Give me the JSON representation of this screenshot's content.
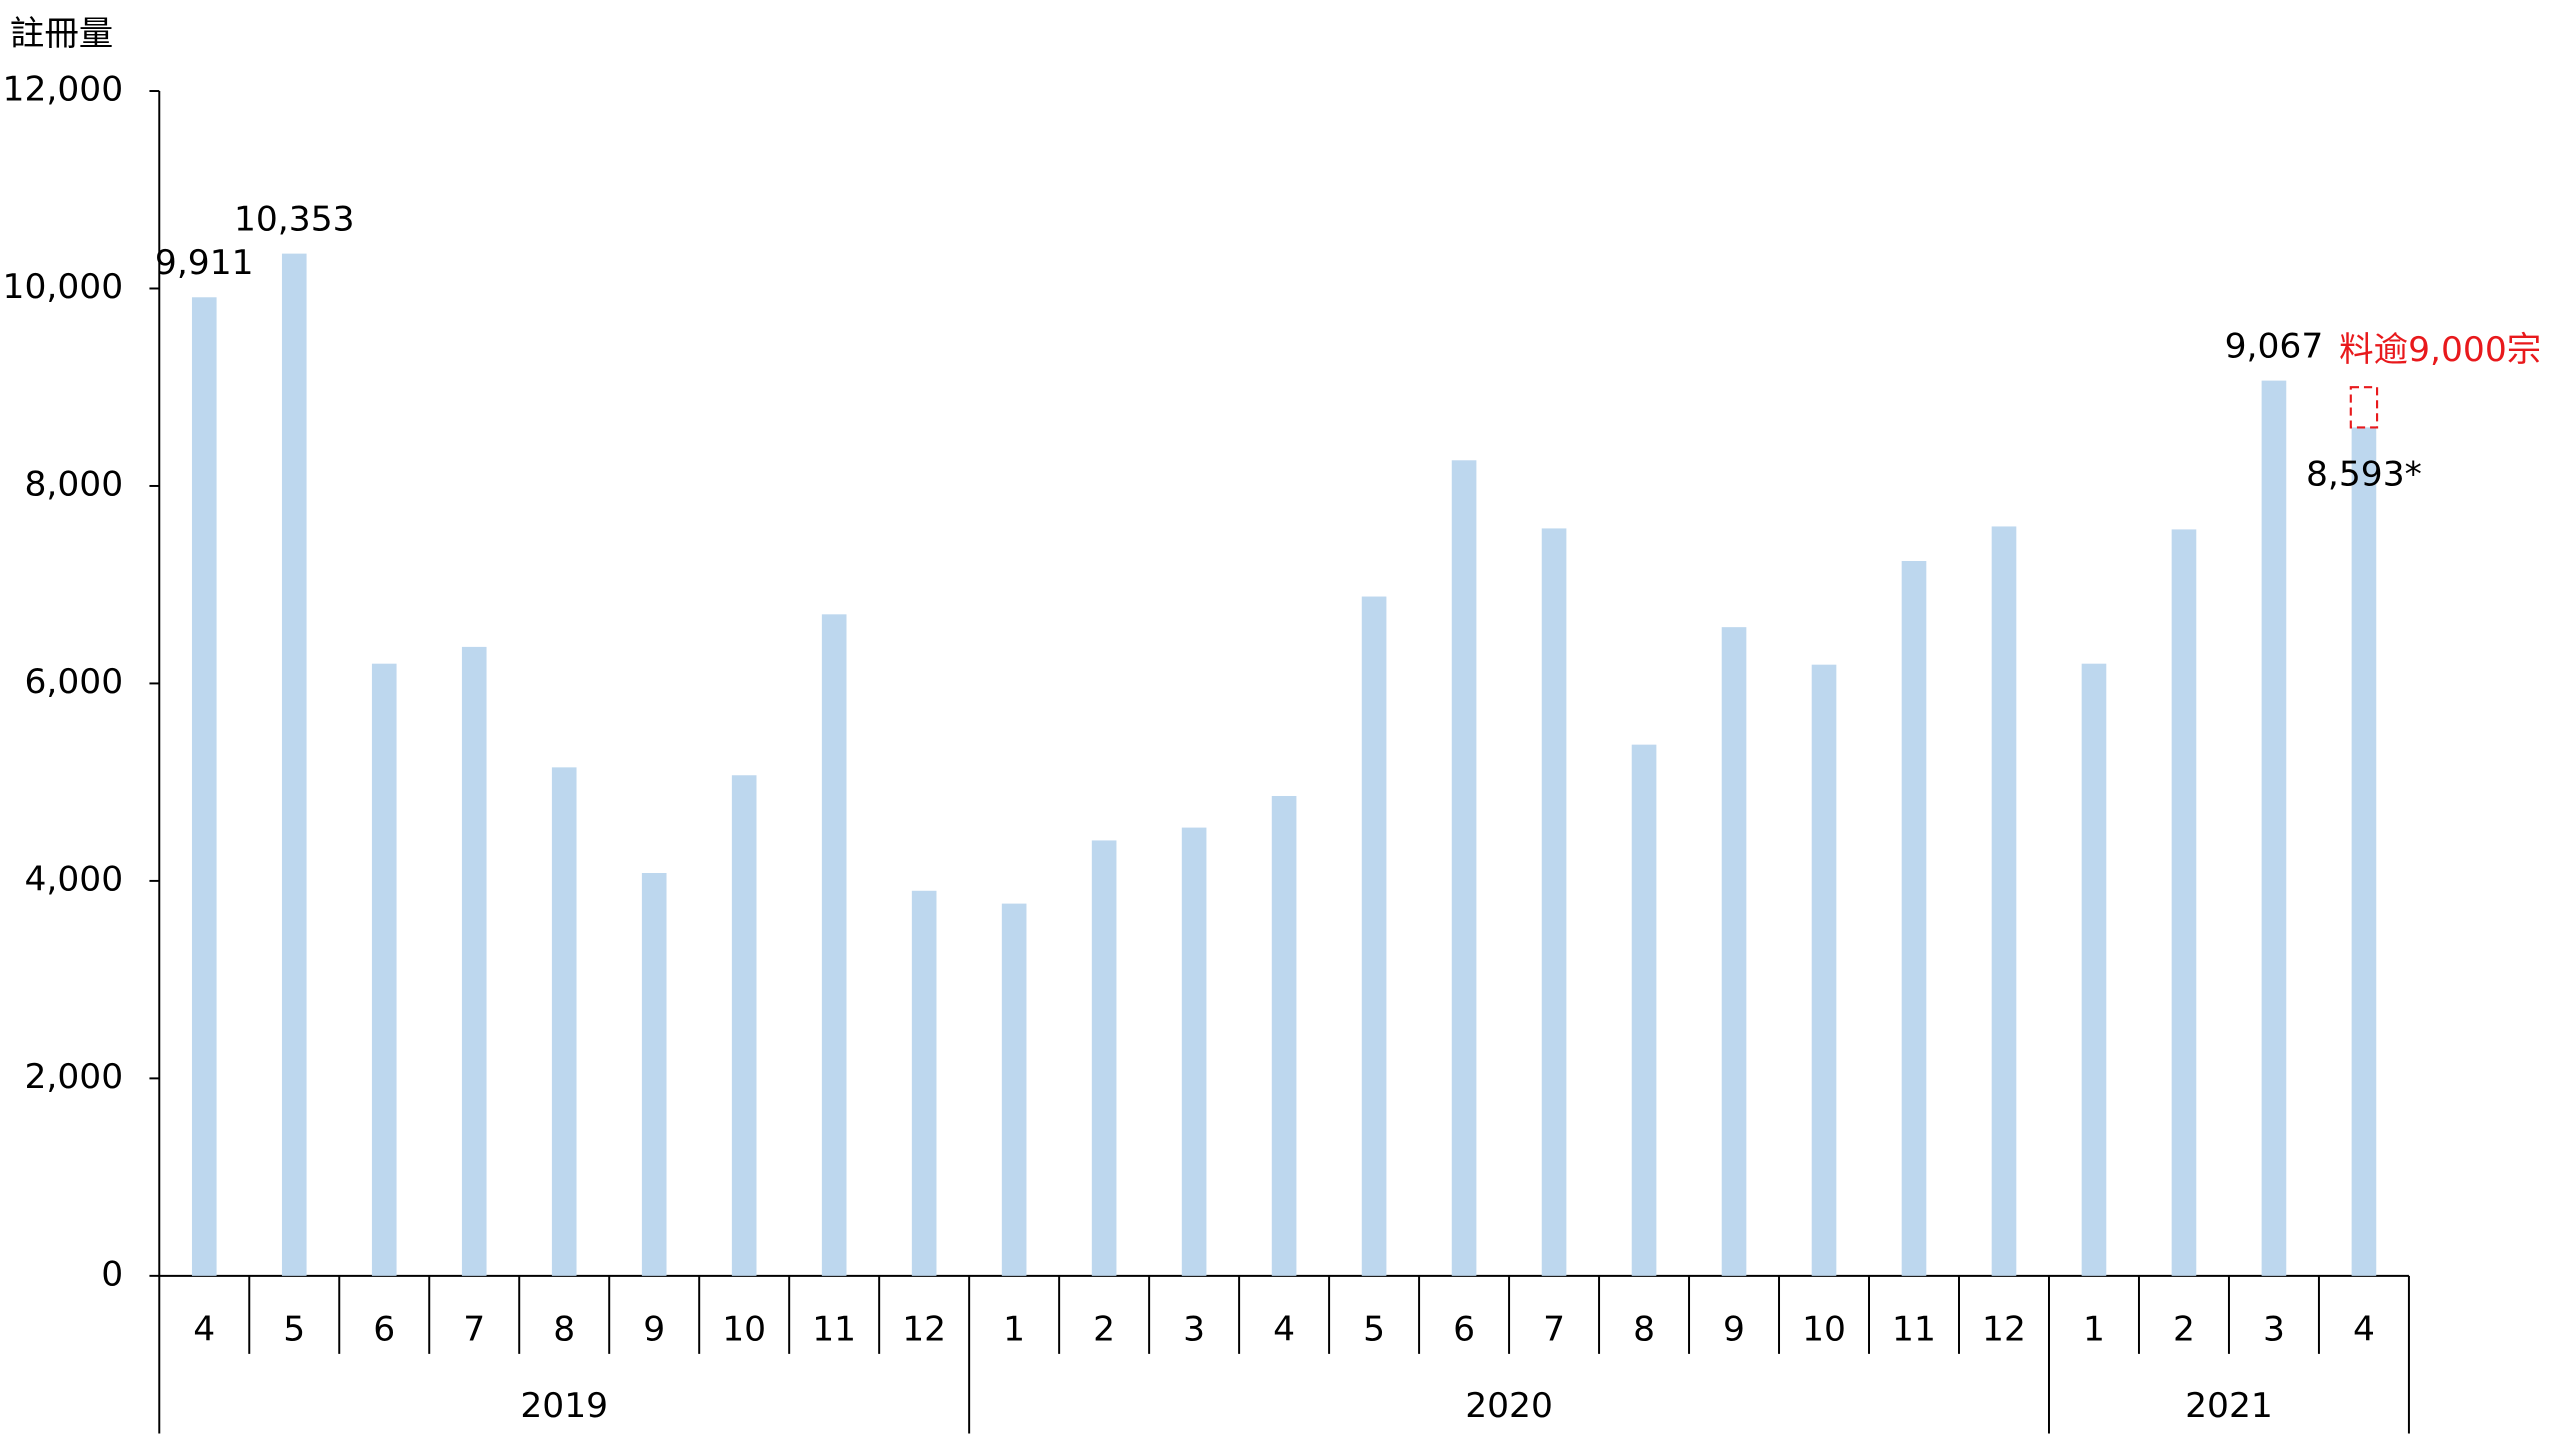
{
  "chart_data": {
    "type": "bar",
    "y_axis_label": "註冊量",
    "groups": [
      {
        "label": "2019",
        "categories": [
          "4",
          "5",
          "6",
          "7",
          "8",
          "9",
          "10",
          "11",
          "12"
        ]
      },
      {
        "label": "2020",
        "categories": [
          "1",
          "2",
          "3",
          "4",
          "5",
          "6",
          "7",
          "8",
          "9",
          "10",
          "11",
          "12"
        ]
      },
      {
        "label": "2021",
        "categories": [
          "1",
          "2",
          "3",
          "4"
        ]
      }
    ],
    "values": [
      9911,
      10353,
      6200,
      6370,
      5150,
      4080,
      5070,
      6700,
      3900,
      3770,
      4410,
      4540,
      4860,
      6880,
      8260,
      7570,
      5380,
      6570,
      6190,
      7240,
      7590,
      6200,
      7560,
      9067,
      8593
    ],
    "value_labels": [
      "9,911",
      "10,353",
      null,
      null,
      null,
      null,
      null,
      null,
      null,
      null,
      null,
      null,
      null,
      null,
      null,
      null,
      null,
      null,
      null,
      null,
      null,
      null,
      null,
      "9,067",
      "8,593*"
    ],
    "color": "#bdd7ee",
    "annotation": {
      "text": "料逾9,000宗",
      "value": 9000,
      "color": "#e8191c"
    },
    "ylim": [
      0,
      12000
    ],
    "yticks": [
      0,
      {
        "value": 2000,
        "label": "2,000"
      },
      {
        "value": 4000,
        "label": "4,000"
      },
      {
        "value": 6000,
        "label": "6,000"
      },
      {
        "value": 8000,
        "label": "8,000"
      },
      {
        "value": 10000,
        "label": "10,000"
      },
      {
        "value": 12000,
        "label": "12,000"
      }
    ]
  }
}
